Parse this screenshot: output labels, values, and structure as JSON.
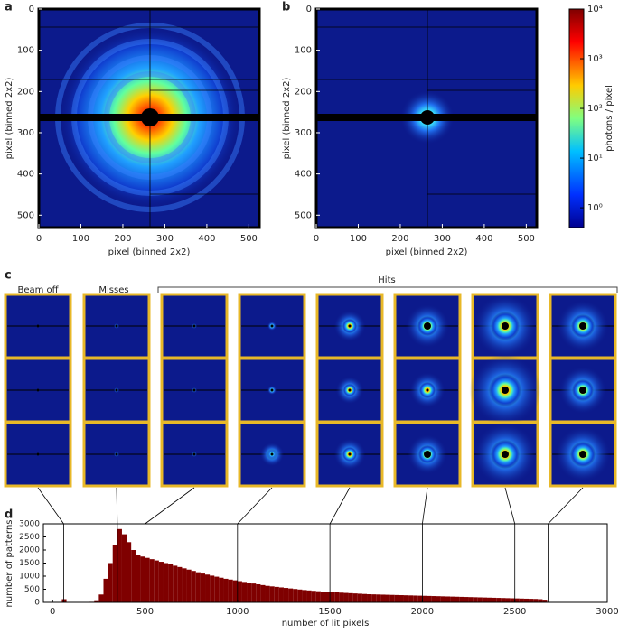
{
  "chart_data": [
    {
      "type": "image",
      "label": "a",
      "xlabel": "pixel (binned 2x2)",
      "ylabel": "pixel (binned 2x2)",
      "xlim": [
        0,
        525
      ],
      "ylim": [
        0,
        530
      ],
      "y_inverted": true,
      "xticks": [
        0,
        100,
        200,
        300,
        400,
        500
      ],
      "yticks": [
        0,
        100,
        200,
        300,
        400,
        500
      ]
    },
    {
      "type": "image",
      "label": "b",
      "xlabel": "pixel (binned 2x2)",
      "ylabel": "pixel (binned 2x2)",
      "xlim": [
        0,
        525
      ],
      "ylim": [
        0,
        530
      ],
      "y_inverted": true,
      "xticks": [
        0,
        100,
        200,
        300,
        400,
        500
      ],
      "yticks": [
        0,
        100,
        200,
        300,
        400,
        500
      ]
    },
    {
      "type": "colorbar",
      "label": "photons / pixel",
      "ylim": [
        0.4,
        10000
      ],
      "log_scale": true,
      "yticks": [
        {
          "value": 1,
          "label": "10⁰"
        },
        {
          "value": 10,
          "label": "10¹"
        },
        {
          "value": 100,
          "label": "10²"
        },
        {
          "value": 1000,
          "label": "10³"
        },
        {
          "value": 10000,
          "label": "10⁴"
        }
      ]
    },
    {
      "type": "thumbnails",
      "label": "c",
      "groups": [
        "Beam off",
        "Misses",
        "Hits"
      ]
    },
    {
      "type": "histogram",
      "label": "d",
      "xlabel": "number of lit pixels",
      "ylabel": "number of patterns",
      "color": "#7f0000",
      "xlim": [
        -50,
        3000
      ],
      "ylim": [
        0,
        3000
      ],
      "xticks": [
        0,
        500,
        1000,
        1500,
        2000,
        2500,
        3000
      ],
      "yticks": [
        0,
        500,
        1000,
        1500,
        2000,
        2500,
        3000
      ],
      "markers": [
        60,
        350,
        500,
        1000,
        1500,
        2000,
        2500,
        2680
      ],
      "bins": [
        0,
        25,
        50,
        75,
        100,
        125,
        150,
        175,
        200,
        225,
        250,
        275,
        300,
        325,
        350,
        375,
        400,
        425,
        450,
        475,
        500,
        525,
        550,
        575,
        600,
        625,
        650,
        675,
        700,
        725,
        750,
        775,
        800,
        825,
        850,
        875,
        900,
        925,
        950,
        975,
        1000,
        1025,
        1050,
        1075,
        1100,
        1125,
        1150,
        1175,
        1200,
        1225,
        1250,
        1275,
        1300,
        1325,
        1350,
        1375,
        1400,
        1425,
        1450,
        1475,
        1500,
        1525,
        1550,
        1575,
        1600,
        1625,
        1650,
        1675,
        1700,
        1725,
        1750,
        1775,
        1800,
        1825,
        1850,
        1875,
        1900,
        1925,
        1950,
        1975,
        2000,
        2025,
        2050,
        2075,
        2100,
        2125,
        2150,
        2175,
        2200,
        2225,
        2250,
        2275,
        2300,
        2325,
        2350,
        2375,
        2400,
        2425,
        2450,
        2475,
        2500,
        2525,
        2550,
        2575,
        2600,
        2625,
        2650,
        2675,
        2700,
        2725,
        2750,
        2775,
        2800,
        2825,
        2850,
        2875,
        2900,
        2925,
        2950,
        2975,
        3000
      ],
      "values": [
        0,
        0,
        120,
        0,
        0,
        0,
        0,
        0,
        20,
        80,
        300,
        900,
        1500,
        2200,
        2800,
        2600,
        2300,
        2000,
        1800,
        1750,
        1700,
        1650,
        1600,
        1550,
        1500,
        1450,
        1400,
        1350,
        1300,
        1250,
        1200,
        1150,
        1100,
        1060,
        1020,
        980,
        940,
        900,
        870,
        840,
        810,
        780,
        750,
        720,
        690,
        660,
        630,
        610,
        590,
        570,
        550,
        530,
        510,
        490,
        470,
        455,
        440,
        425,
        410,
        400,
        390,
        380,
        370,
        360,
        350,
        340,
        330,
        320,
        310,
        305,
        300,
        295,
        290,
        285,
        280,
        275,
        270,
        265,
        260,
        255,
        250,
        245,
        240,
        235,
        230,
        225,
        220,
        215,
        210,
        205,
        200,
        195,
        190,
        185,
        180,
        175,
        170,
        165,
        160,
        155,
        150,
        145,
        140,
        135,
        130,
        120,
        100,
        0,
        0,
        0,
        0,
        0,
        0,
        0,
        0,
        0,
        0,
        0,
        0,
        0
      ]
    }
  ]
}
